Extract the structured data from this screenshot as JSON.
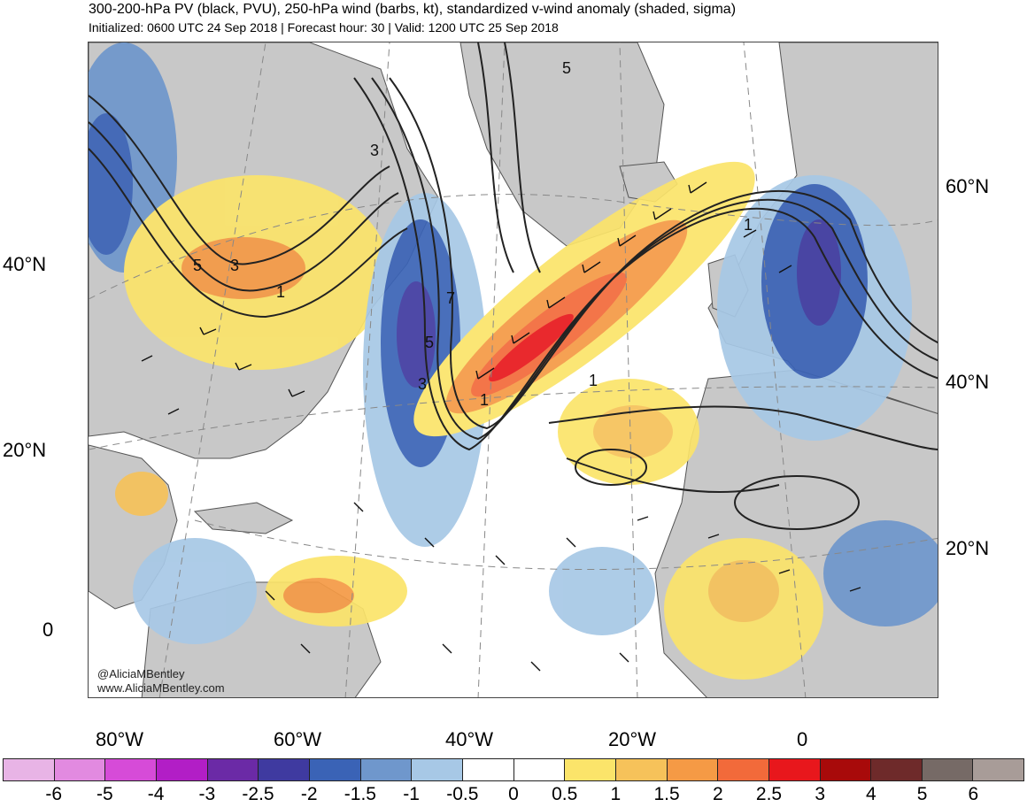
{
  "title": "300-200-hPa PV (black, PVU), 250-hPa wind (barbs, kt), standardized v-wind anomaly (shaded, sigma)",
  "subtitle": "Initialized: 0600 UTC 24 Sep 2018 | Forecast hour: 30 | Valid: 1200 UTC 25 Sep 2018",
  "credits": {
    "handle": "@AliciaMBentley",
    "website": "www.AliciaMBentley.com"
  },
  "left_lat_labels": [
    "40°N",
    "20°N",
    "0"
  ],
  "right_lat_labels": [
    "60°N",
    "40°N",
    "20°N"
  ],
  "lon_labels": [
    "80°W",
    "60°W",
    "40°W",
    "20°W",
    "0"
  ],
  "contour_labels": [
    "5",
    "5",
    "3",
    "3",
    "1",
    "7",
    "5",
    "3",
    "1",
    "1",
    "1"
  ],
  "colorbar": {
    "labels": [
      "-6",
      "-5",
      "-4",
      "-3",
      "-2.5",
      "-2",
      "-1.5",
      "-1",
      "-0.5",
      "0",
      "0.5",
      "1",
      "1.5",
      "2",
      "2.5",
      "3",
      "4",
      "5",
      "6"
    ],
    "colors": [
      "#e8b4e6",
      "#e28ae0",
      "#d64bd8",
      "#b21ec6",
      "#6b2aa6",
      "#3f3aa0",
      "#3a63b6",
      "#6f97cc",
      "#a7c8e6",
      "#ffffff",
      "#ffffff",
      "#fbe46a",
      "#f6c25a",
      "#f59a45",
      "#f26a3a",
      "#e8171c",
      "#a80a0a",
      "#6e2a2a",
      "#766a66",
      "#a89c98"
    ]
  },
  "map_colors": {
    "land": "#c8c8c8",
    "ocean": "#ffffff",
    "contour": "#222222",
    "coast": "#555555"
  }
}
